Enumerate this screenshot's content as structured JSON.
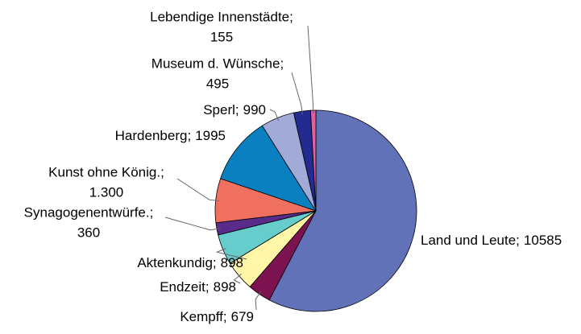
{
  "chart_data": {
    "type": "pie",
    "categories": [
      "Land und Leute;",
      "Kempff;",
      "Endzeit;",
      "Aktenkundig;",
      "Synagogenentwürfe.;",
      "Kunst ohne König.;",
      "Hardenberg;",
      "Sperl;",
      "Museum d. Wünsche;",
      "Lebendige Innenstädte;"
    ],
    "values": [
      10585,
      679,
      898,
      898,
      360,
      1300,
      1995,
      990,
      495,
      155
    ],
    "value_labels": [
      "10585",
      "679",
      "898",
      "898",
      "360",
      "1.300",
      "1995",
      "990",
      "495",
      "155"
    ],
    "colors": [
      "#6272b8",
      "#7d1250",
      "#fff6a8",
      "#66cccc",
      "#5b2b8c",
      "#f07060",
      "#0a80c0",
      "#a2aad8",
      "#232a90",
      "#e060a0"
    ]
  }
}
